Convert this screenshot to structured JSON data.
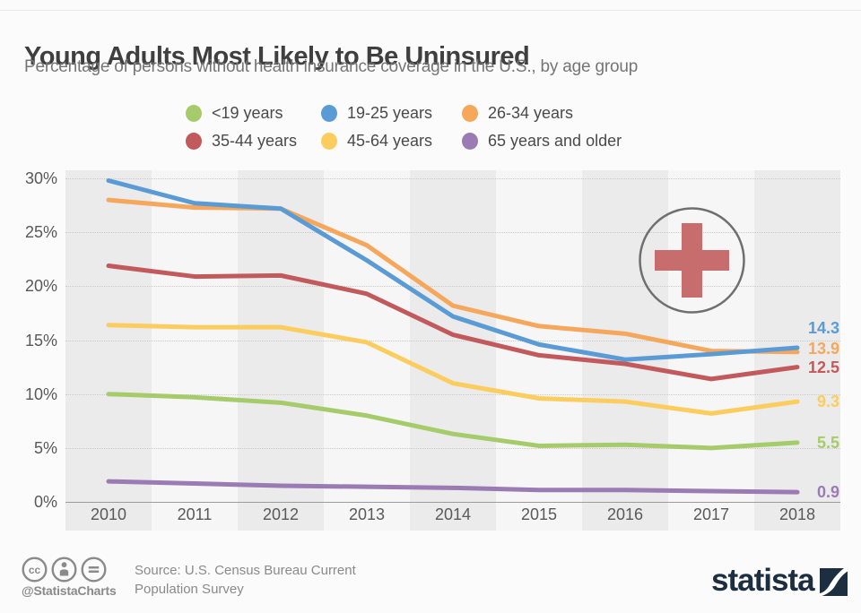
{
  "title": "Young Adults Most Likely to Be Uninsured",
  "subtitle": "Percentage of persons without health insurance coverage in the U.S., by age group",
  "chart_data": {
    "type": "line",
    "x": [
      2010,
      2011,
      2012,
      2013,
      2014,
      2015,
      2016,
      2017,
      2018
    ],
    "series": [
      {
        "name": "<19 years",
        "color": "#a5cb6a",
        "end_label": "5.5",
        "values": [
          10.0,
          9.7,
          9.2,
          8.0,
          6.3,
          5.2,
          5.3,
          5.0,
          5.5
        ]
      },
      {
        "name": "19-25 years",
        "color": "#5b9bd5",
        "end_label": "14.3",
        "values": [
          29.8,
          27.7,
          27.2,
          22.4,
          17.2,
          14.6,
          13.2,
          13.7,
          14.3
        ]
      },
      {
        "name": "26-34 years",
        "color": "#f5a75b",
        "end_label": "13.9",
        "values": [
          28.0,
          27.3,
          27.2,
          23.8,
          18.2,
          16.3,
          15.6,
          14.0,
          13.9
        ]
      },
      {
        "name": "35-44 years",
        "color": "#c2595c",
        "end_label": "12.5",
        "values": [
          21.9,
          20.9,
          21.0,
          19.3,
          15.5,
          13.6,
          12.8,
          11.4,
          12.5
        ]
      },
      {
        "name": "45-64 years",
        "color": "#fbcd5e",
        "end_label": "9.3",
        "values": [
          16.4,
          16.2,
          16.2,
          14.8,
          11.0,
          9.6,
          9.3,
          8.2,
          9.3
        ]
      },
      {
        "name": "65 years and older",
        "color": "#9b7bb4",
        "end_label": "0.9",
        "values": [
          1.9,
          1.7,
          1.5,
          1.4,
          1.3,
          1.1,
          1.1,
          1.0,
          0.9
        ]
      }
    ],
    "ylim": [
      0,
      30
    ],
    "yticks": [
      30,
      25,
      20,
      15,
      10,
      5,
      0
    ],
    "ytick_labels": [
      "30%",
      "25%",
      "20%",
      "15%",
      "10%",
      "5%",
      "0%"
    ],
    "grid": "horizontal-dotted",
    "legend_position": "top-center",
    "band_colors": [
      "#ebebeb",
      "#f6f6f6"
    ],
    "annotation_icon": "medical-cross"
  },
  "footer": {
    "badge_icons": [
      "cc-icon",
      "attribution-person-icon",
      "no-derivatives-icon"
    ],
    "handle": "@StatistaCharts",
    "source_lines": [
      "Source: U.S. Census Bureau Current",
      "Population Survey"
    ],
    "logo_text": "statista"
  },
  "colors": {
    "cross_red": "#c76d6d",
    "circle_stroke": "#6f6f6f",
    "logo_navy": "#1c2e40",
    "footer_gray": "#8a8a8a"
  }
}
